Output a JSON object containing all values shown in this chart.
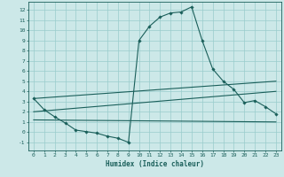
{
  "xlabel": "Humidex (Indice chaleur)",
  "xlim": [
    -0.5,
    23.5
  ],
  "ylim": [
    -1.8,
    12.8
  ],
  "yticks": [
    -1,
    0,
    1,
    2,
    3,
    4,
    5,
    6,
    7,
    8,
    9,
    10,
    11,
    12
  ],
  "xticks": [
    0,
    1,
    2,
    3,
    4,
    5,
    6,
    7,
    8,
    9,
    10,
    11,
    12,
    13,
    14,
    15,
    16,
    17,
    18,
    19,
    20,
    21,
    22,
    23
  ],
  "bg_color": "#cce8e8",
  "line_color": "#1a5f5a",
  "grid_color": "#99cccc",
  "main_curve_x": [
    0,
    1,
    2,
    3,
    4,
    5,
    6,
    7,
    8,
    9,
    10,
    11,
    12,
    13,
    14,
    15,
    16,
    17,
    18,
    19,
    20,
    21,
    22,
    23
  ],
  "main_curve_y": [
    3.3,
    2.2,
    1.5,
    0.9,
    0.2,
    0.05,
    -0.1,
    -0.4,
    -0.6,
    -1.0,
    9.0,
    10.4,
    11.3,
    11.7,
    11.8,
    12.3,
    9.0,
    6.2,
    5.0,
    4.2,
    2.9,
    3.1,
    2.5,
    1.8
  ],
  "line1_x": [
    0,
    23
  ],
  "line1_y": [
    3.3,
    5.0
  ],
  "line2_x": [
    0,
    23
  ],
  "line2_y": [
    2.0,
    4.0
  ],
  "line3_x": [
    0,
    23
  ],
  "line3_y": [
    1.2,
    1.0
  ]
}
